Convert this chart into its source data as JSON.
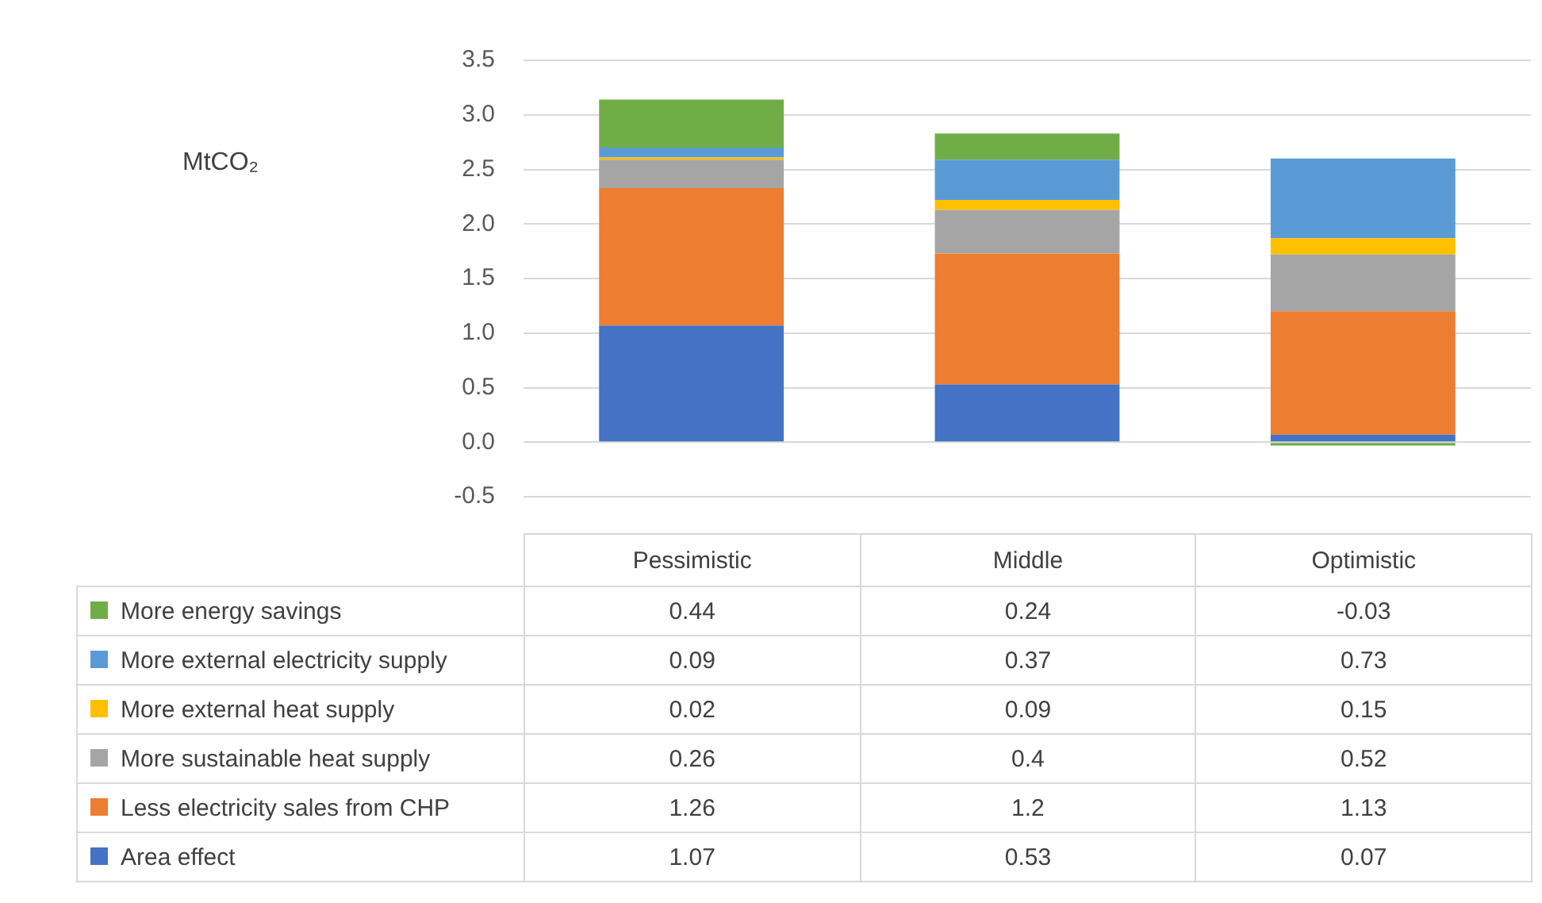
{
  "chart_data": {
    "type": "bar",
    "stacked": true,
    "annotations": [
      "MtCO₂"
    ],
    "categories": [
      "Pessimistic",
      "Middle",
      "Optimistic"
    ],
    "series": [
      {
        "name": "Area effect",
        "color": "#4472c4",
        "values": [
          1.07,
          0.53,
          0.07
        ]
      },
      {
        "name": "Less electricity sales from CHP",
        "color": "#ed7d31",
        "values": [
          1.26,
          1.2,
          1.13
        ]
      },
      {
        "name": "More sustainable heat supply",
        "color": "#a5a5a5",
        "values": [
          0.26,
          0.4,
          0.52
        ]
      },
      {
        "name": "More external heat supply",
        "color": "#ffc000",
        "values": [
          0.02,
          0.09,
          0.15
        ]
      },
      {
        "name": "More external electricity supply",
        "color": "#5b9bd5",
        "values": [
          0.09,
          0.37,
          0.73
        ]
      },
      {
        "name": "More energy savings",
        "color": "#70ad47",
        "values": [
          0.44,
          0.24,
          -0.03
        ]
      }
    ],
    "ylim": [
      -0.5,
      3.5
    ],
    "yticks": [
      "-0.5",
      "0.0",
      "0.5",
      "1.0",
      "1.5",
      "2.0",
      "2.5",
      "3.0",
      "3.5"
    ],
    "grid": "y",
    "legend": "bottom",
    "data_labels": true
  }
}
